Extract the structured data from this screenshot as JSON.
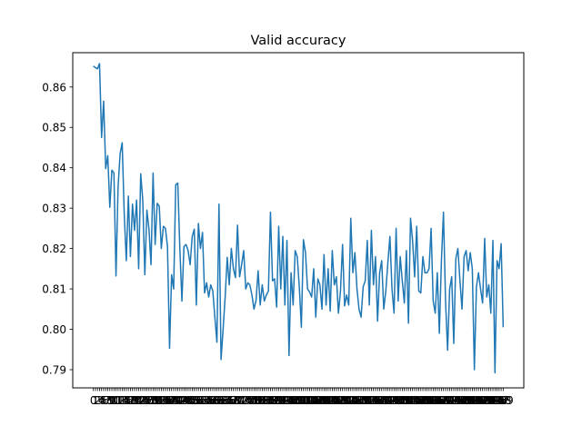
{
  "chart_data": {
    "type": "line",
    "title": "Valid accuracy",
    "xlabel": "",
    "ylabel": "",
    "grid": false,
    "legend": "none",
    "xlim": [
      -10,
      209
    ],
    "ylim": [
      0.7855,
      0.8685
    ],
    "y_ticks": [
      "0.79",
      "0.80",
      "0.81",
      "0.82",
      "0.83",
      "0.84",
      "0.85",
      "0.86"
    ],
    "x_ticks_count": 200,
    "x_tick_labels_note_free": true,
    "line_color": "#1f77b4",
    "series": [
      {
        "values": [
          0.8652,
          0.8648,
          0.8645,
          0.8658,
          0.8475,
          0.8565,
          0.8398,
          0.843,
          0.8302,
          0.8394,
          0.8387,
          0.8132,
          0.8352,
          0.8435,
          0.8462,
          0.8285,
          0.817,
          0.833,
          0.818,
          0.831,
          0.8245,
          0.832,
          0.815,
          0.8385,
          0.832,
          0.8135,
          0.8295,
          0.8248,
          0.816,
          0.8387,
          0.821,
          0.8312,
          0.8305,
          0.82,
          0.8255,
          0.825,
          0.8205,
          0.7953,
          0.8135,
          0.81,
          0.8358,
          0.8362,
          0.82,
          0.807,
          0.8205,
          0.821,
          0.8195,
          0.816,
          0.823,
          0.8248,
          0.806,
          0.8262,
          0.82,
          0.824,
          0.809,
          0.8115,
          0.808,
          0.811,
          0.8095,
          0.803,
          0.7968,
          0.831,
          0.7925,
          0.8,
          0.808,
          0.8178,
          0.811,
          0.82,
          0.815,
          0.8128,
          0.8258,
          0.813,
          0.816,
          0.8195,
          0.81,
          0.8115,
          0.811,
          0.8085,
          0.805,
          0.8072,
          0.8145,
          0.806,
          0.811,
          0.807,
          0.8085,
          0.8095,
          0.829,
          0.812,
          0.8125,
          0.8055,
          0.8255,
          0.81,
          0.823,
          0.806,
          0.822,
          0.7935,
          0.814,
          0.806,
          0.8195,
          0.818,
          0.8105,
          0.8005,
          0.8222,
          0.819,
          0.81,
          0.8092,
          0.808,
          0.815,
          0.803,
          0.8125,
          0.811,
          0.805,
          0.8185,
          0.806,
          0.815,
          0.8045,
          0.8195,
          0.811,
          0.813,
          0.804,
          0.8095,
          0.821,
          0.8058,
          0.8085,
          0.806,
          0.8275,
          0.814,
          0.819,
          0.81,
          0.805,
          0.803,
          0.8105,
          0.812,
          0.822,
          0.806,
          0.8245,
          0.811,
          0.818,
          0.802,
          0.814,
          0.817,
          0.805,
          0.8095,
          0.8165,
          0.823,
          0.81,
          0.804,
          0.825,
          0.807,
          0.818,
          0.812,
          0.8065,
          0.8195,
          0.8015,
          0.8275,
          0.822,
          0.813,
          0.8255,
          0.8095,
          0.809,
          0.818,
          0.814,
          0.814,
          0.815,
          0.825,
          0.807,
          0.804,
          0.814,
          0.799,
          0.817,
          0.829,
          0.807,
          0.7948,
          0.81,
          0.813,
          0.7965,
          0.8175,
          0.82,
          0.812,
          0.805,
          0.818,
          0.8195,
          0.8145,
          0.819,
          0.815,
          0.79,
          0.8105,
          0.814,
          0.81,
          0.8065,
          0.8225,
          0.808,
          0.811,
          0.804,
          0.822,
          0.7892,
          0.817,
          0.815,
          0.8212,
          0.8005
        ]
      }
    ]
  }
}
